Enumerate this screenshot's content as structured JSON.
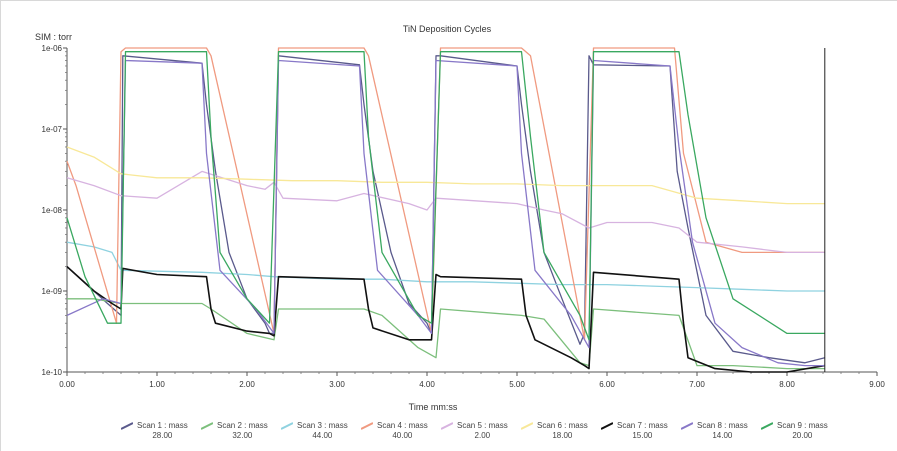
{
  "chart_data": {
    "type": "line",
    "title": "TiN Deposition Cycles",
    "ylabel": "SIM : torr",
    "xlabel": "Time mm:ss",
    "yscale": "log",
    "ylim": [
      1e-10,
      1e-06
    ],
    "xlim": [
      0,
      9.0
    ],
    "x_tick_labels": [
      "0.00",
      "1.00",
      "2.00",
      "3.00",
      "4.00",
      "5.00",
      "6.00",
      "7.00",
      "8.00",
      "9.00"
    ],
    "y_tick_labels": [
      "1e-10",
      "1e-09",
      "1e-08",
      "1e-07",
      "1e-06"
    ],
    "cursor_x": 8.42,
    "grid": false,
    "legend_position": "bottom",
    "series": [
      {
        "name": "Scan 1 : mass",
        "mass": "28.00",
        "color": "#5a5a8c",
        "x": [
          0,
          0.45,
          0.6,
          0.62,
          1.5,
          1.55,
          1.65,
          1.8,
          2.0,
          2.2,
          2.25,
          2.3,
          2.35,
          3.25,
          3.3,
          3.4,
          3.6,
          3.8,
          4.0,
          4.05,
          4.1,
          4.15,
          5.0,
          5.05,
          5.15,
          5.3,
          5.5,
          5.7,
          5.75,
          5.8,
          5.85,
          6.7,
          6.78,
          6.9,
          7.1,
          7.4,
          7.8,
          8.2,
          8.42
        ],
        "y": [
          2e-09,
          7e-10,
          5e-10,
          8e-07,
          6.5e-07,
          2e-07,
          3e-08,
          3e-09,
          8e-10,
          4e-10,
          3e-10,
          3e-10,
          8e-07,
          6.2e-07,
          2e-07,
          3e-08,
          3e-09,
          7e-10,
          4e-10,
          3e-10,
          8e-07,
          8e-07,
          6e-07,
          2e-07,
          3e-08,
          3e-09,
          8e-10,
          2.2e-10,
          3e-10,
          8e-07,
          6.2e-07,
          6e-07,
          3e-08,
          6e-09,
          5e-10,
          1.8e-10,
          1.5e-10,
          1.3e-10,
          1.5e-10
        ]
      },
      {
        "name": "Scan 2 : mass",
        "mass": "32.00",
        "color": "#7cbf7c",
        "x": [
          0,
          0.3,
          0.6,
          0.65,
          1.5,
          1.6,
          2.0,
          2.3,
          2.35,
          3.3,
          3.5,
          3.9,
          4.1,
          4.15,
          5.05,
          5.3,
          5.7,
          5.8,
          5.85,
          6.8,
          7.0,
          7.4,
          8.0,
          8.42
        ],
        "y": [
          8e-10,
          8e-10,
          7e-10,
          7e-10,
          7e-10,
          6e-10,
          3e-10,
          2.5e-10,
          6e-10,
          6e-10,
          5e-10,
          2e-10,
          1.5e-10,
          6e-10,
          5e-10,
          4.5e-10,
          1.3e-10,
          1.2e-10,
          6e-10,
          5e-10,
          1.2e-10,
          1.2e-10,
          1.1e-10,
          1.1e-10
        ]
      },
      {
        "name": "Scan 3 : mass",
        "mass": "44.00",
        "color": "#8fd2e0",
        "x": [
          0,
          0.3,
          0.5,
          0.6,
          1.5,
          2.0,
          2.3,
          3.0,
          3.5,
          4.0,
          4.5,
          5.0,
          5.5,
          6.0,
          6.5,
          7.0,
          7.5,
          8.0,
          8.42
        ],
        "y": [
          4e-09,
          3.5e-09,
          3e-09,
          1.8e-09,
          1.7e-09,
          1.6e-09,
          1.5e-09,
          1.4e-09,
          1.4e-09,
          1.3e-09,
          1.3e-09,
          1.25e-09,
          1.2e-09,
          1.2e-09,
          1.15e-09,
          1.1e-09,
          1.05e-09,
          1e-09,
          1e-09
        ]
      },
      {
        "name": "Scan 4 : mass",
        "mass": "40.00",
        "color": "#f09a80",
        "x": [
          0,
          0.1,
          0.55,
          0.6,
          0.65,
          1.55,
          1.6,
          2.3,
          2.35,
          3.3,
          3.35,
          4.05,
          4.15,
          5.05,
          5.15,
          5.75,
          5.85,
          6.75,
          6.85,
          7.1,
          7.5,
          8.0,
          8.42
        ],
        "y": [
          4e-08,
          2e-08,
          4e-10,
          9e-07,
          1e-06,
          1e-06,
          8e-07,
          3e-10,
          1e-06,
          1e-06,
          8e-07,
          3e-10,
          1e-06,
          1e-06,
          8e-07,
          2.5e-10,
          1e-06,
          1e-06,
          5e-08,
          4e-09,
          3e-09,
          3e-09,
          3e-09
        ]
      },
      {
        "name": "Scan 5 : mass",
        "mass": "2.00",
        "color": "#d7b3e0",
        "x": [
          0,
          0.3,
          0.6,
          1.0,
          1.5,
          2.0,
          2.2,
          2.3,
          2.4,
          3.0,
          3.3,
          3.8,
          4.0,
          4.1,
          5.0,
          5.3,
          5.5,
          5.8,
          6.0,
          6.5,
          6.8,
          7.0,
          7.5,
          8.0,
          8.42
        ],
        "y": [
          2.5e-08,
          2e-08,
          1.5e-08,
          1.4e-08,
          3e-08,
          2e-08,
          1.8e-08,
          2.2e-08,
          1.4e-08,
          1.3e-08,
          1.6e-08,
          1.2e-08,
          1e-08,
          1.4e-08,
          1.2e-08,
          1e-08,
          9e-09,
          6e-09,
          7e-09,
          7e-09,
          6e-09,
          4e-09,
          3.5e-09,
          3e-09,
          3e-09
        ]
      },
      {
        "name": "Scan 6 : mass",
        "mass": "18.00",
        "color": "#f8e898",
        "x": [
          0,
          0.3,
          0.6,
          1.0,
          1.5,
          2.0,
          2.5,
          3.0,
          3.5,
          4.0,
          4.5,
          5.0,
          5.5,
          6.0,
          6.5,
          7.0,
          7.5,
          8.0,
          8.42
        ],
        "y": [
          6e-08,
          4.5e-08,
          2.8e-08,
          2.5e-08,
          2.5e-08,
          2.4e-08,
          2.3e-08,
          2.3e-08,
          2.2e-08,
          2.2e-08,
          2.1e-08,
          2.1e-08,
          2e-08,
          2e-08,
          2e-08,
          1.4e-08,
          1.3e-08,
          1.2e-08,
          1.2e-08
        ]
      },
      {
        "name": "Scan 7 : mass",
        "mass": "15.00",
        "color": "#111111",
        "x": [
          0,
          0.3,
          0.5,
          0.6,
          0.62,
          1.0,
          1.55,
          1.6,
          1.65,
          2.0,
          2.25,
          2.3,
          2.35,
          3.3,
          3.35,
          3.4,
          3.8,
          4.05,
          4.1,
          4.15,
          5.05,
          5.1,
          5.2,
          5.6,
          5.75,
          5.8,
          5.85,
          6.8,
          6.85,
          6.9,
          7.2,
          7.6,
          8.0,
          8.42
        ],
        "y": [
          2e-09,
          1e-09,
          7e-10,
          6e-10,
          1.9e-09,
          1.6e-09,
          1.5e-09,
          6e-10,
          4e-10,
          3.2e-10,
          3e-10,
          2.8e-10,
          1.5e-09,
          1.4e-09,
          6e-10,
          3.5e-10,
          2.5e-10,
          2.5e-10,
          1.6e-09,
          1.5e-09,
          1.4e-09,
          5e-10,
          2.5e-10,
          1.5e-10,
          1.2e-10,
          1.1e-10,
          1.7e-09,
          1.4e-09,
          4e-10,
          1.5e-10,
          1.1e-10,
          1e-10,
          1e-10,
          1.2e-10
        ]
      },
      {
        "name": "Scan 8 : mass",
        "mass": "14.00",
        "color": "#8878c8",
        "x": [
          0,
          0.4,
          0.6,
          0.65,
          1.5,
          1.55,
          1.7,
          2.1,
          2.3,
          2.35,
          3.25,
          3.3,
          3.45,
          3.9,
          4.05,
          4.1,
          5.0,
          5.05,
          5.2,
          5.6,
          5.8,
          5.85,
          6.7,
          6.8,
          6.95,
          7.2,
          7.5,
          7.9,
          8.2,
          8.42
        ],
        "y": [
          5e-10,
          8e-10,
          7e-10,
          7e-07,
          6.5e-07,
          5e-08,
          1.8e-09,
          6e-10,
          3e-10,
          7e-07,
          6e-07,
          5e-08,
          1.8e-09,
          5e-10,
          3e-10,
          7e-07,
          6e-07,
          5e-08,
          1.8e-09,
          5e-10,
          2e-10,
          7e-07,
          6e-07,
          6e-08,
          4e-09,
          4e-10,
          2e-10,
          1.3e-10,
          1.2e-10,
          1.2e-10
        ]
      },
      {
        "name": "Scan 9 : mass",
        "mass": "20.00",
        "color": "#3aa860",
        "x": [
          0,
          0.2,
          0.45,
          0.6,
          0.65,
          1.55,
          1.6,
          1.7,
          2.0,
          2.25,
          2.35,
          3.3,
          3.35,
          3.5,
          3.9,
          4.05,
          4.15,
          5.05,
          5.15,
          5.3,
          5.7,
          5.8,
          5.85,
          6.8,
          6.9,
          7.1,
          7.4,
          8.0,
          8.42
        ],
        "y": [
          8e-09,
          1.5e-09,
          4e-10,
          4e-10,
          9e-07,
          9e-07,
          8e-08,
          3e-09,
          8e-10,
          4e-10,
          9e-07,
          9e-07,
          8e-08,
          3e-09,
          5e-10,
          4e-10,
          9e-07,
          9e-07,
          8e-08,
          3e-09,
          5e-10,
          2.5e-10,
          9e-07,
          9e-07,
          1.5e-07,
          8e-09,
          8e-10,
          3e-10,
          3e-10
        ]
      }
    ]
  }
}
